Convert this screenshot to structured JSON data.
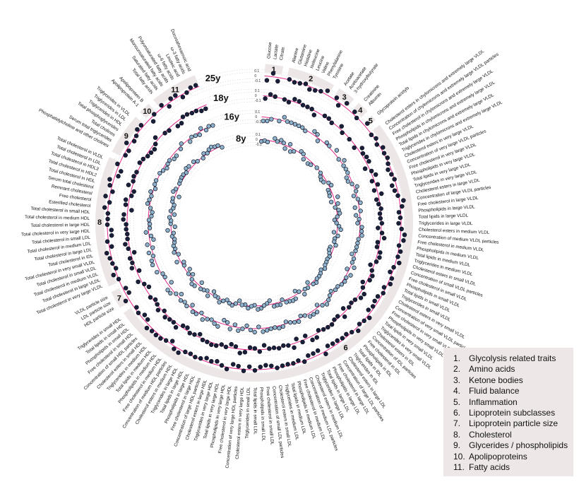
{
  "chart_data": {
    "type": "circular-dot",
    "ring_labels": [
      "25y",
      "18y",
      "16y",
      "8y"
    ],
    "groups": [
      {
        "id": "1",
        "name": "Glycolysis related traits",
        "traits": [
          "Glucose",
          "Lactate",
          "Citrate"
        ]
      },
      {
        "id": "2",
        "name": "Amino acids",
        "traits": [
          "Alanine",
          "Glutamine",
          "Histidine",
          "Isoleucine",
          "Leucine",
          "Valine",
          "Phenylalanine",
          "Tyrosine"
        ]
      },
      {
        "id": "3",
        "name": "Ketone bodies",
        "traits": [
          "Acetate",
          "Acetoacetate",
          "3-hydroxybutyrate"
        ]
      },
      {
        "id": "4",
        "name": "Fluid balance",
        "traits": [
          "Creatinine",
          "Albumin"
        ]
      },
      {
        "id": "5",
        "name": "Inflammation",
        "traits": [
          "Glycoprotein acetyls"
        ]
      },
      {
        "id": "6",
        "name": "Lipoprotein subclasses",
        "traits": [
          "Cholesterol esters in chylomicrons and extremely large VLDL",
          "Concentration of chylomicrons and extremely large VLDL particles",
          "Free cholesterol in chylomicrons and extremely large VLDL",
          "Phospholipids in chylomicrons and extremely large VLDL",
          "Total lipids in chylomicrons and extremely large VLDL",
          "Triglycerides in chylomicrons and extremely large VLDL",
          "Cholesterol esters in very large VLDL",
          "Concentration of very large VLDL particles",
          "Free cholesterol in very large VLDL",
          "Phospholipids in very large VLDL",
          "Total lipids in very large VLDL",
          "Triglycerides in very large VLDL",
          "Cholesterol esters in large VLDL",
          "Concentration of large VLDL particles",
          "Free cholesterol in large VLDL",
          "Phospholipids in large VLDL",
          "Total lipids in large VLDL",
          "Triglycerides in large VLDL",
          "Cholesterol esters in medium VLDL",
          "Concentration of medium VLDL particles",
          "Free cholesterol in medium VLDL",
          "Phospholipids in medium VLDL",
          "Total lipids in medium VLDL",
          "Triglycerides in medium VLDL",
          "Cholesterol esters in small VLDL",
          "Concentration of small VLDL particles",
          "Free cholesterol in small VLDL",
          "Phospholipids in small VLDL",
          "Total lipids in small VLDL",
          "Triglycerides in small VLDL",
          "Cholesterol esters in very small VLDL",
          "Concentration of very small VLDL particles",
          "Free cholesterol in very small VLDL",
          "Phospholipids in very small VLDL",
          "Total lipids in very small VLDL",
          "Triglycerides in very small VLDL",
          "Cholesterol esters in IDL",
          "Concentration of IDL particles",
          "Free cholesterol in IDL",
          "Phospholipids in IDL",
          "Total lipids in IDL",
          "Triglycerides in IDL",
          "Cholesterol esters in large LDL",
          "Concentration of large LDL particles",
          "Free cholesterol in large LDL",
          "Phospholipids in large LDL",
          "Total lipids in large LDL",
          "Triglycerides in large LDL",
          "Cholesterol esters in medium LDL",
          "Concentration of medium LDL particles",
          "Free cholesterol in medium LDL",
          "Phospholipids in medium LDL",
          "Total lipids in medium LDL",
          "Triglycerides in medium LDL",
          "Cholesterol esters in small LDL",
          "Concentration of small LDL particles",
          "Free cholesterol in small LDL",
          "Phospholipids in small LDL",
          "Total lipids in small LDL",
          "Triglycerides in small LDL",
          "Cholesterol esters in very large HDL",
          "Concentration of very large HDL particles",
          "Free cholesterol in very large HDL",
          "Phospholipids in very large HDL",
          "Total lipids in very large HDL",
          "Triglycerides in very large HDL",
          "Cholesterol esters in large HDL",
          "Concentration of large HDL particles",
          "Free cholesterol in large HDL",
          "Phospholipids in large HDL",
          "Total lipids in large HDL",
          "Triglycerides in large HDL",
          "Cholesterol esters in medium HDL",
          "Concentration of medium HDL particles",
          "Free cholesterol in medium HDL",
          "Phospholipids in medium HDL",
          "Total lipids in medium HDL",
          "Triglycerides in medium HDL",
          "Cholesterol esters in small HDL",
          "Concentration of small HDL particles",
          "Free cholesterol in small HDL",
          "Phospholipids in small HDL",
          "Total lipids in small HDL",
          "Triglycerides in small HDL"
        ]
      },
      {
        "id": "7",
        "name": "Lipoprotein particle size",
        "traits": [
          "HDL particle size",
          "LDL particle size",
          "VLDL particle size"
        ]
      },
      {
        "id": "8",
        "name": "Cholesterol",
        "traits": [
          "Total cholesterol in very large VLDL",
          "Total cholesterol in large VLDL",
          "Total cholesterol in medium VLDL",
          "Total cholesterol in small VLDL",
          "Total cholesterol in very small VLDL",
          "Total cholesterol in IDL",
          "Total cholesterol in large LDL",
          "Total cholesterol in medium LDL",
          "Total cholesterol in small LDL",
          "Total cholesterol in very large HDL",
          "Total cholesterol in large HDL",
          "Total cholesterol in medium HDL",
          "Total cholesterol in small HDL",
          "Esterified cholesterol",
          "Free cholesterol",
          "Remnant cholesterol",
          "Serum total cholesterol",
          "Total cholesterol in HDL",
          "Total cholesterol in HDL2",
          "Total cholesterol in HDL3",
          "Total cholesterol in LDL",
          "Total cholesterol in VLDL"
        ]
      },
      {
        "id": "9",
        "name": "Glycerides / phospholipids",
        "traits": [
          "Phosphatidylcholine and other cholines",
          "Serum total triglycerides",
          "Total cholines",
          "Total phosphoglycerides",
          "Triglycerides in HDL",
          "Triglycerides in LDL",
          "Triglycerides in VLDL"
        ]
      },
      {
        "id": "10",
        "name": "Apolipoproteins",
        "traits": [
          "Apolipoprotein A-1",
          "Apolipoprotein B"
        ]
      },
      {
        "id": "11",
        "name": "Fatty acids",
        "traits": [
          "Total fatty acids",
          "Saturated fatty acids",
          "Monounsaturated fatty acids",
          "Polyunsaturated fatty acids",
          "ω-6 fatty acids",
          "Linoleic acid",
          "ω-3 fatty acids",
          "Docosahexaenoic acid"
        ]
      }
    ],
    "axis_ticks": [
      "0.1",
      "0",
      "-0.1"
    ],
    "colors": {
      "dot_dark": "#1a1f3a",
      "dot_light": "#8fb3cc",
      "zero_line": "#e0288a",
      "group_band": "#ece6e6",
      "grid": "#bbbbbb"
    }
  },
  "legend": [
    {
      "num": "1.",
      "label": "Glycolysis related traits"
    },
    {
      "num": "2.",
      "label": "Amino acids"
    },
    {
      "num": "3.",
      "label": "Ketone bodies"
    },
    {
      "num": "4.",
      "label": "Fluid balance"
    },
    {
      "num": "5.",
      "label": "Inflammation"
    },
    {
      "num": "6.",
      "label": "Lipoprotein subclasses"
    },
    {
      "num": "7.",
      "label": "Lipoprotein particle size"
    },
    {
      "num": "8.",
      "label": "Cholesterol"
    },
    {
      "num": "9.",
      "label": "Glycerides / phospholipids"
    },
    {
      "num": "10.",
      "label": "Apolipoproteins"
    },
    {
      "num": "11.",
      "label": "Fatty acids"
    }
  ]
}
